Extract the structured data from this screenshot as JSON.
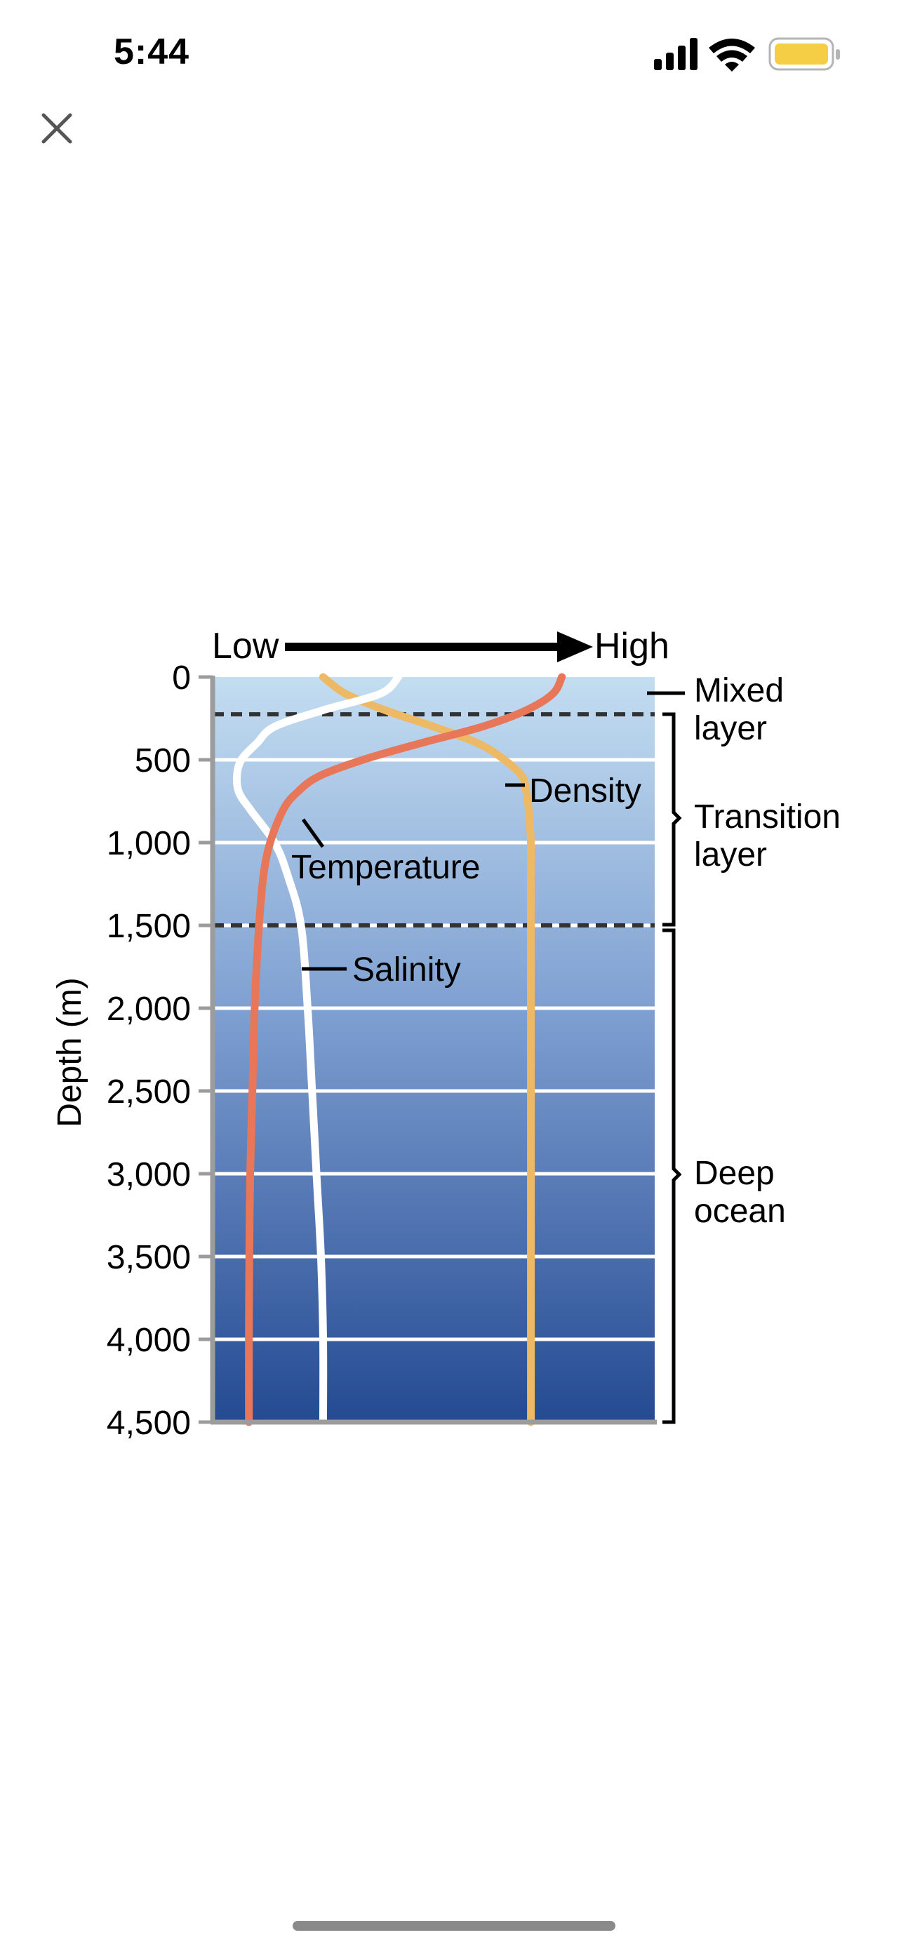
{
  "status_bar": {
    "time": "5:44"
  },
  "colors": {
    "temperature": "#E8775A",
    "density": "#EEB965",
    "salinity": "#FFFFFF",
    "water_top": "#C3DDF1",
    "water_bottom": "#244A92",
    "battery": "#F5CE45"
  },
  "chart_data": {
    "type": "line",
    "title": "",
    "orientation": "vertical-depth-profile",
    "xlabel_low": "Low",
    "xlabel_high": "High",
    "ylabel": "Depth (m)",
    "ylim": [
      0,
      4500
    ],
    "y_ticks": [
      0,
      500,
      1000,
      1500,
      2000,
      2500,
      3000,
      3500,
      4000,
      4500
    ],
    "y_tick_labels": [
      "0",
      "500",
      "1,000",
      "1,500",
      "2,000",
      "2,500",
      "3,000",
      "3,500",
      "4,000",
      "4,500"
    ],
    "x_relative_range": [
      0,
      1
    ],
    "series": [
      {
        "name": "Temperature",
        "label": "Temperature",
        "depth": [
          0,
          100,
          200,
          300,
          400,
          500,
          600,
          700,
          800,
          1000,
          1200,
          1500,
          2000,
          2500,
          3000,
          3500,
          4000,
          4500
        ],
        "value": [
          0.79,
          0.77,
          0.71,
          0.61,
          0.47,
          0.34,
          0.24,
          0.19,
          0.16,
          0.13,
          0.115,
          0.105,
          0.095,
          0.09,
          0.085,
          0.083,
          0.082,
          0.082
        ]
      },
      {
        "name": "Density",
        "label": "Density",
        "depth": [
          0,
          100,
          200,
          300,
          400,
          500,
          600,
          700,
          800,
          1000,
          1200,
          1500,
          2000,
          2500,
          3000,
          3500,
          4000,
          4500
        ],
        "value": [
          0.25,
          0.3,
          0.39,
          0.5,
          0.6,
          0.66,
          0.7,
          0.71,
          0.715,
          0.72,
          0.72,
          0.72,
          0.72,
          0.72,
          0.72,
          0.72,
          0.72,
          0.72
        ]
      },
      {
        "name": "Salinity",
        "label": "Salinity",
        "depth": [
          0,
          100,
          200,
          300,
          400,
          500,
          600,
          700,
          800,
          1000,
          1200,
          1500,
          2000,
          2500,
          3000,
          3500,
          4000,
          4500
        ],
        "value": [
          0.42,
          0.38,
          0.25,
          0.14,
          0.1,
          0.065,
          0.055,
          0.06,
          0.085,
          0.14,
          0.17,
          0.2,
          0.215,
          0.225,
          0.235,
          0.245,
          0.25,
          0.25
        ]
      }
    ],
    "boundaries": [
      {
        "depth": 225,
        "style": "dashed"
      },
      {
        "depth": 1500,
        "style": "dashed"
      }
    ],
    "layers": [
      {
        "line1": "Mixed",
        "line2": "layer",
        "from": 0,
        "to": 225
      },
      {
        "line1": "Transition",
        "line2": "layer",
        "from": 225,
        "to": 1500
      },
      {
        "line1": "Deep",
        "line2": "ocean",
        "from": 1500,
        "to": 4500
      }
    ]
  }
}
